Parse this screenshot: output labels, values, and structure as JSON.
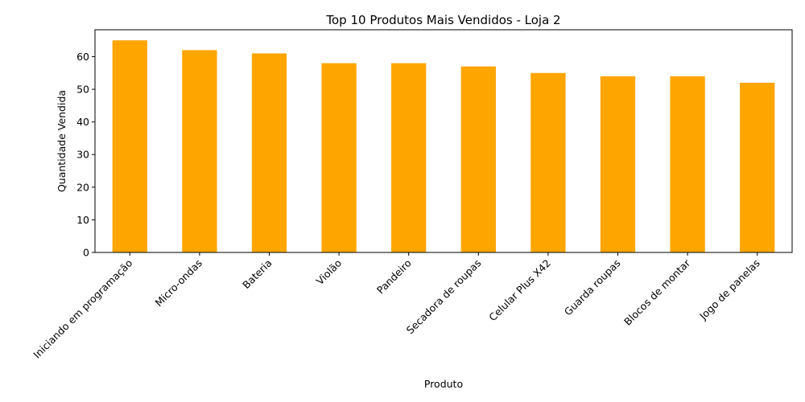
{
  "chart_data": {
    "type": "bar",
    "title": "Top 10 Produtos Mais Vendidos - Loja 2",
    "xlabel": "Produto",
    "ylabel": "Quantidade Vendida",
    "categories": [
      "Iniciando em programação",
      "Micro-ondas",
      "Bateria",
      "Violão",
      "Pandeiro",
      "Secadora de roupas",
      "Celular Plus X42",
      "Guarda roupas",
      "Blocos de montar",
      "Jogo de panelas"
    ],
    "values": [
      65,
      62,
      61,
      58,
      58,
      57,
      55,
      54,
      54,
      52
    ],
    "ylim": [
      0,
      68.25
    ],
    "yticks": [
      0,
      10,
      20,
      30,
      40,
      50,
      60
    ],
    "ytick_labels": [
      "0",
      "10",
      "20",
      "30",
      "40",
      "50",
      "60"
    ],
    "bar_color": "#ffa500",
    "grid": false,
    "legend": "none"
  }
}
